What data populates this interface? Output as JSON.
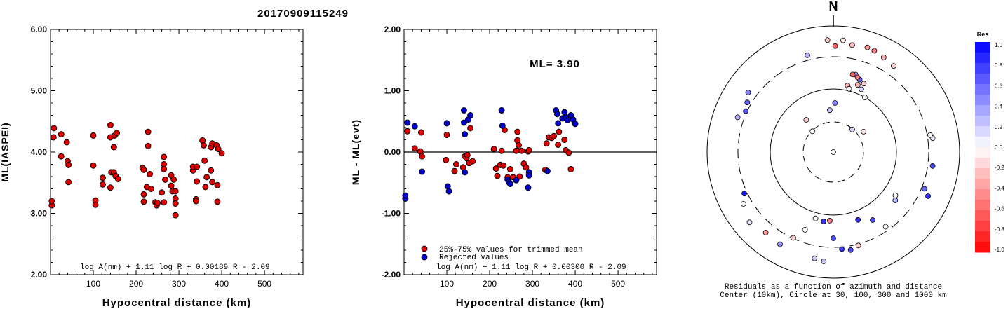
{
  "suptitle": "20170909115249",
  "chart_data": [
    {
      "type": "scatter",
      "ylabel": "ML(IASPEI)",
      "xlabel": "Hypocentral distance (km)",
      "xlim": [
        0,
        590
      ],
      "ylim": [
        2.0,
        6.0
      ],
      "xticks": [
        "100",
        "200",
        "300",
        "400",
        "500"
      ],
      "yticks": [
        "2.00",
        "3.00",
        "4.00",
        "5.00",
        "6.00"
      ],
      "formula": "log A(nm) + 1.11 log R + 0.00189 R - 2.09",
      "series": [
        {
          "color": "#dd0000",
          "points": [
            [
              3,
              3.13
            ],
            [
              3,
              3.2
            ],
            [
              7,
              4.24
            ],
            [
              8,
              4.39
            ],
            [
              25,
              4.29
            ],
            [
              25,
              3.93
            ],
            [
              38,
              4.16
            ],
            [
              40,
              3.85
            ],
            [
              42,
              3.79
            ],
            [
              42,
              3.51
            ],
            [
              100,
              4.27
            ],
            [
              100,
              3.78
            ],
            [
              105,
              3.21
            ],
            [
              105,
              3.14
            ],
            [
              122,
              3.58
            ],
            [
              122,
              3.47
            ],
            [
              140,
              4.44
            ],
            [
              140,
              4.24
            ],
            [
              142,
              3.67
            ],
            [
              140,
              3.42
            ],
            [
              150,
              4.27
            ],
            [
              148,
              4.08
            ],
            [
              148,
              3.67
            ],
            [
              152,
              3.61
            ],
            [
              155,
              4.31
            ],
            [
              158,
              3.56
            ],
            [
              215,
              3.74
            ],
            [
              218,
              3.71
            ],
            [
              218,
              3.31
            ],
            [
              218,
              3.19
            ],
            [
              225,
              3.43
            ],
            [
              228,
              4.33
            ],
            [
              228,
              4.1
            ],
            [
              232,
              3.64
            ],
            [
              235,
              3.4
            ],
            [
              245,
              3.18
            ],
            [
              248,
              3.13
            ],
            [
              250,
              3.17
            ],
            [
              260,
              3.34
            ],
            [
              265,
              3.92
            ],
            [
              265,
              3.8
            ],
            [
              265,
              3.72
            ],
            [
              268,
              3.55
            ],
            [
              265,
              3.18
            ],
            [
              282,
              3.62
            ],
            [
              282,
              3.45
            ],
            [
              285,
              3.36
            ],
            [
              288,
              3.55
            ],
            [
              292,
              3.36
            ],
            [
              292,
              3.24
            ],
            [
              292,
              3.16
            ],
            [
              292,
              2.97
            ],
            [
              333,
              3.7
            ],
            [
              333,
              3.76
            ],
            [
              340,
              3.23
            ],
            [
              340,
              3.2
            ],
            [
              342,
              3.76
            ],
            [
              342,
              3.52
            ],
            [
              355,
              4.19
            ],
            [
              358,
              4.11
            ],
            [
              360,
              3.86
            ],
            [
              362,
              3.43
            ],
            [
              365,
              3.59
            ],
            [
              375,
              4.08
            ],
            [
              375,
              3.7
            ],
            [
              378,
              4.14
            ],
            [
              378,
              3.51
            ],
            [
              388,
              4.11
            ],
            [
              390,
              3.46
            ],
            [
              390,
              3.19
            ],
            [
              392,
              4.05
            ],
            [
              400,
              3.98
            ]
          ]
        }
      ]
    },
    {
      "type": "scatter",
      "ylabel": "ML - ML(evt)",
      "xlabel": "Hypocentral distance (km)",
      "xlim": [
        0,
        590
      ],
      "ylim": [
        -2.0,
        2.0
      ],
      "xticks": [
        "100",
        "200",
        "300",
        "400",
        "500"
      ],
      "yticks": [
        "-2.00",
        "-1.00",
        "0.00",
        "1.00",
        "2.00"
      ],
      "annotation": "ML= 3.90",
      "formula": "log A(nm) + 1.11 log R + 0.00300 R - 2.09",
      "legend": [
        "25%-75% values for trimmed mean",
        "Rejected values"
      ],
      "series": [
        {
          "name": "25%-75% values for trimmed mean",
          "color": "#dd0000",
          "points": [
            [
              8,
              0.34
            ],
            [
              25,
              0.06
            ],
            [
              38,
              0.01
            ],
            [
              40,
              0.32
            ],
            [
              42,
              -0.07
            ],
            [
              98,
              -0.13
            ],
            [
              100,
              0.28
            ],
            [
              118,
              -0.31
            ],
            [
              122,
              -0.2
            ],
            [
              138,
              -0.25
            ],
            [
              142,
              -0.07
            ],
            [
              146,
              -0.1
            ],
            [
              148,
              -0.05
            ],
            [
              152,
              -0.18
            ],
            [
              155,
              0.39
            ],
            [
              160,
              -0.15
            ],
            [
              210,
              0.05
            ],
            [
              215,
              -0.27
            ],
            [
              218,
              -0.39
            ],
            [
              225,
              -0.21
            ],
            [
              228,
              0.02
            ],
            [
              232,
              -0.22
            ],
            [
              235,
              0.36
            ],
            [
              242,
              -0.41
            ],
            [
              248,
              -0.28
            ],
            [
              255,
              -0.41
            ],
            [
              262,
              0.02
            ],
            [
              265,
              0.33
            ],
            [
              265,
              0.19
            ],
            [
              268,
              0.11
            ],
            [
              270,
              -0.4
            ],
            [
              275,
              0.02
            ],
            [
              280,
              -0.19
            ],
            [
              285,
              -0.25
            ],
            [
              290,
              0.01
            ],
            [
              292,
              0.03
            ],
            [
              330,
              -0.29
            ],
            [
              333,
              0.14
            ],
            [
              338,
              0.24
            ],
            [
              345,
              0.23
            ],
            [
              350,
              0.26
            ],
            [
              360,
              0.12
            ],
            [
              362,
              0.33
            ],
            [
              375,
              0.2
            ],
            [
              378,
              0.03
            ],
            [
              385,
              -0.01
            ],
            [
              390,
              -0.28
            ]
          ]
        },
        {
          "name": "Rejected values",
          "color": "#0000cc",
          "points": [
            [
              3,
              -0.76
            ],
            [
              3,
              -0.71
            ],
            [
              8,
              0.48
            ],
            [
              25,
              0.42
            ],
            [
              42,
              -0.32
            ],
            [
              100,
              0.47
            ],
            [
              102,
              -0.56
            ],
            [
              105,
              -0.64
            ],
            [
              140,
              0.68
            ],
            [
              140,
              0.48
            ],
            [
              142,
              0.29
            ],
            [
              142,
              -0.33
            ],
            [
              150,
              0.53
            ],
            [
              155,
              0.6
            ],
            [
              228,
              0.68
            ],
            [
              230,
              0.43
            ],
            [
              242,
              -0.45
            ],
            [
              245,
              -0.49
            ],
            [
              248,
              -0.52
            ],
            [
              262,
              -0.46
            ],
            [
              290,
              -0.58
            ],
            [
              292,
              -0.33
            ],
            [
              292,
              -0.38
            ],
            [
              335,
              -0.31
            ],
            [
              355,
              0.68
            ],
            [
              358,
              0.62
            ],
            [
              360,
              0.47
            ],
            [
              370,
              0.55
            ],
            [
              375,
              0.65
            ],
            [
              378,
              0.57
            ],
            [
              382,
              0.52
            ],
            [
              390,
              0.6
            ],
            [
              395,
              0.53
            ],
            [
              400,
              0.46
            ]
          ]
        }
      ]
    },
    {
      "type": "scatter",
      "subtype": "polar",
      "north_label": "N",
      "caption_line1": "Residuals as a function of azimuth and distance",
      "caption_line2": "Center (10km), Circle at 30, 100, 300 and 1000 km",
      "colorbar_title": "Res",
      "colorbar_ticks": [
        "1.0",
        "0.8",
        "0.6",
        "0.4",
        "0.2",
        "0.0",
        "-0.2",
        "-0.4",
        "-0.6",
        "-0.8",
        "-1.0"
      ],
      "points_res": [
        [
          0.3,
          0.0
        ],
        [
          2,
          0.5
        ],
        [
          56,
          -0.1
        ],
        [
          355,
          0.2
        ],
        [
          40,
          0.15
        ],
        [
          320,
          -0.2
        ],
        [
          315,
          0.0
        ],
        [
          10,
          -0.3
        ],
        [
          18,
          -0.4
        ],
        [
          22,
          -0.5
        ],
        [
          28,
          -0.3
        ],
        [
          35,
          -0.2
        ],
        [
          16,
          0.4
        ],
        [
          20,
          0.6
        ],
        [
          24,
          -0.2
        ],
        [
          18,
          -0.5
        ],
        [
          14,
          -0.6
        ],
        [
          20,
          -0.3
        ],
        [
          24,
          0.2
        ],
        [
          30,
          0.0
        ],
        [
          12,
          -0.3
        ],
        [
          14,
          0.0
        ],
        [
          5,
          -0.1
        ],
        [
          357,
          -0.2
        ],
        [
          345,
          0.3
        ],
        [
          82,
          0.1
        ],
        [
          80,
          -0.05
        ],
        [
          98,
          0.7
        ],
        [
          112,
          0.6
        ],
        [
          115,
          0.8
        ],
        [
          125,
          0.0
        ],
        [
          128,
          0.3
        ],
        [
          160,
          0.8
        ],
        [
          150,
          0.7
        ],
        [
          145,
          0.0
        ],
        [
          165,
          -0.2
        ],
        [
          170,
          0.7
        ],
        [
          175,
          0.8
        ],
        [
          180,
          0.7
        ],
        [
          183,
          -0.5
        ],
        [
          188,
          0.8
        ],
        [
          195,
          0.0
        ],
        [
          200,
          0.0
        ],
        [
          205,
          -0.2
        ],
        [
          210,
          0.4
        ],
        [
          220,
          -0.4
        ],
        [
          230,
          0.1
        ],
        [
          240,
          0.0
        ],
        [
          245,
          0.9
        ],
        [
          295,
          0.7
        ],
        [
          300,
          0.6
        ],
        [
          290,
          0.3
        ],
        [
          305,
          0.5
        ],
        [
          1,
          -0.6
        ],
        [
          190,
          0.2
        ],
        [
          185,
          0.2
        ]
      ]
    }
  ]
}
